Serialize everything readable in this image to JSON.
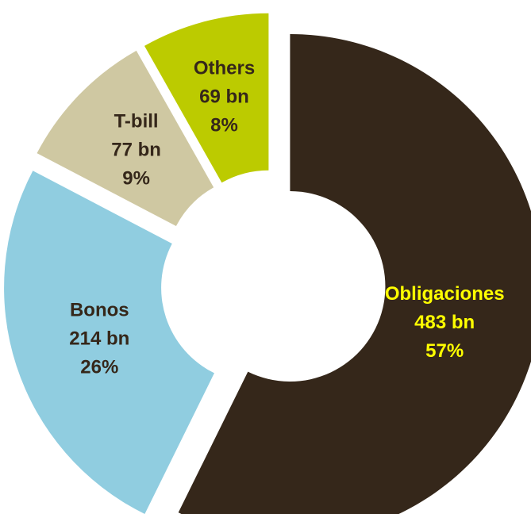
{
  "chart_data": {
    "type": "pie",
    "variant": "donut",
    "exploded": true,
    "title": "",
    "legend": "none",
    "series": [
      {
        "slices": [
          {
            "name": "Obligaciones",
            "value": 483,
            "value_label": "483 bn",
            "percent_label": "57%",
            "color": "#35271a",
            "label_color": "#ffff00"
          },
          {
            "name": "Bonos",
            "value": 214,
            "value_label": "214 bn",
            "percent_label": "26%",
            "color": "#90cde0",
            "label_color": "#35271a"
          },
          {
            "name": "T-bill",
            "value": 77,
            "value_label": "77 bn",
            "percent_label": "9%",
            "color": "#cfc8a2",
            "label_color": "#35271a"
          },
          {
            "name": "Others",
            "value": 69,
            "value_label": "69 bn",
            "percent_label": "8%",
            "color": "#bccb00",
            "label_color": "#35271a"
          }
        ]
      }
    ]
  }
}
